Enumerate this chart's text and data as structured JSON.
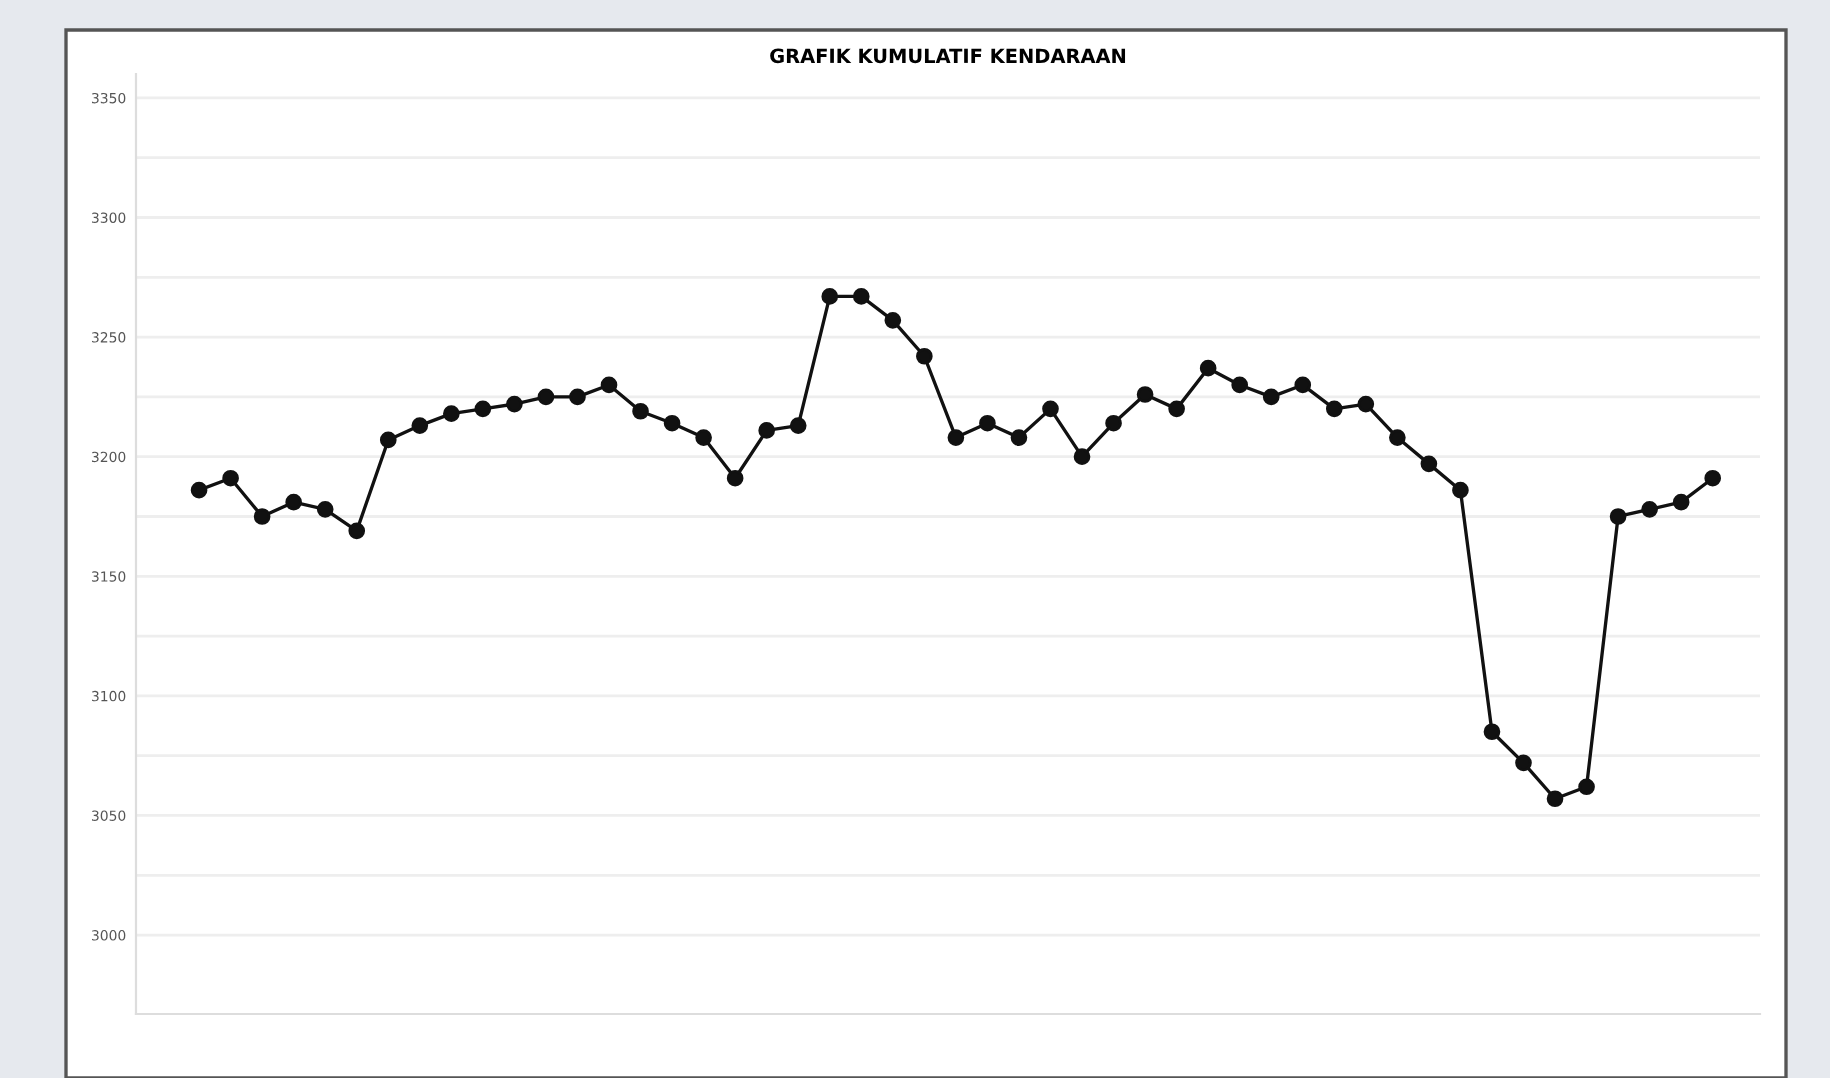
{
  "chart_data": {
    "type": "line",
    "title": "GRAFIK KUMULATIF KENDARAAN",
    "categories": [
      null,
      null,
      null,
      null,
      null,
      null,
      null,
      null,
      null,
      null,
      null,
      null,
      null,
      null,
      null,
      null,
      null,
      null,
      null,
      null,
      null,
      null,
      null,
      null,
      null,
      null,
      null,
      null,
      null,
      null,
      null,
      null,
      null,
      null,
      null,
      null,
      null,
      null,
      null,
      null,
      null,
      null,
      null,
      null,
      null,
      null,
      null,
      null,
      null
    ],
    "series": [
      {
        "color": "#111111",
        "values": [
          3186,
          3191,
          3175,
          3181,
          3178,
          3169,
          3207,
          3213,
          3218,
          3220,
          3222,
          3225,
          3225,
          3230,
          3219,
          3214,
          3208,
          3191,
          3211,
          3213,
          3267,
          3267,
          3257,
          3242,
          3208,
          3214,
          3208,
          3220,
          3200,
          3214,
          3226,
          3220,
          3237,
          3230,
          3225,
          3230,
          3220,
          3222,
          3208,
          3197,
          3186,
          3085,
          3072,
          3057,
          3062,
          3175,
          3178,
          3181,
          3191
        ]
      }
    ],
    "ylim": [
      2967,
      3360
    ],
    "yticks": [
      3000,
      {
        "value": 3025,
        "label": null
      },
      3050,
      {
        "value": 3075,
        "label": null
      },
      3100,
      {
        "value": 3125,
        "label": null
      },
      3150,
      {
        "value": 3175,
        "label": null
      },
      3200,
      {
        "value": 3225,
        "label": null
      },
      3250,
      {
        "value": 3275,
        "label": null
      },
      3300,
      {
        "value": 3325,
        "label": null
      },
      3350
    ],
    "grid": "y",
    "marker": "circle",
    "line_style": "solid"
  }
}
